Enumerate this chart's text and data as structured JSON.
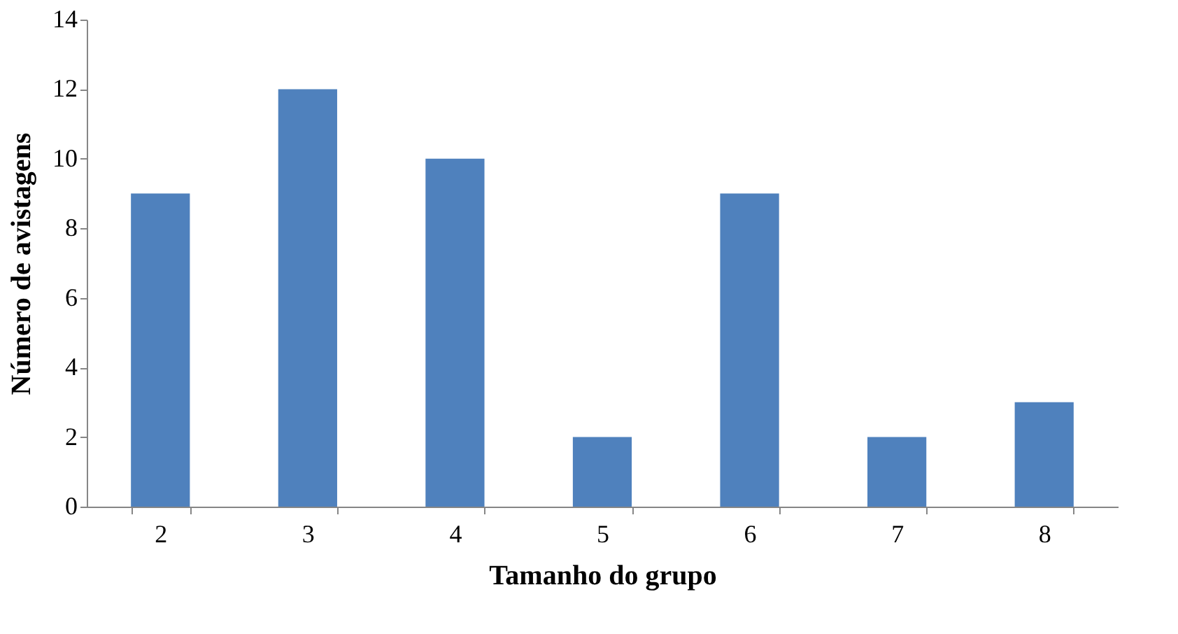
{
  "chart_data": {
    "type": "bar",
    "xlabel": "Tamanho do grupo",
    "ylabel": "Número de avistagens",
    "categories": [
      "2",
      "3",
      "4",
      "5",
      "6",
      "7",
      "8"
    ],
    "series": [
      {
        "color": "#4f81bd",
        "values": [
          9,
          12,
          10,
          2,
          9,
          2,
          3
        ]
      }
    ],
    "ylim": [
      0,
      14
    ],
    "yticks": [
      0,
      2,
      4,
      6,
      8,
      10,
      12,
      14
    ],
    "grid": false,
    "legend": false
  }
}
